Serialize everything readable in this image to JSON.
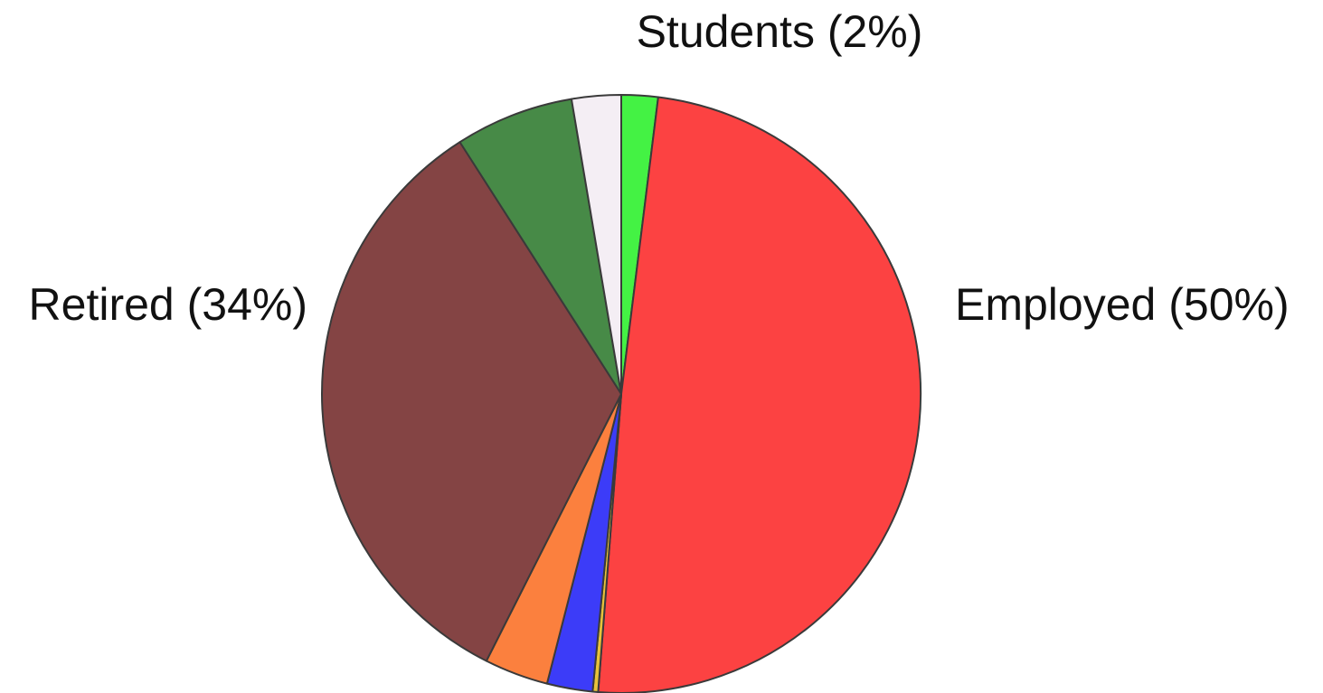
{
  "chart_data": {
    "type": "pie",
    "slices": [
      {
        "label": "Students (2%)",
        "value": 2,
        "color": "#44f244"
      },
      {
        "label": "Employed (50%)",
        "value": 50,
        "color": "#fc4242"
      },
      {
        "label": "",
        "value": 0.3,
        "color": "#e8c23a"
      },
      {
        "label": "",
        "value": 2.5,
        "color": "#3c3cf8"
      },
      {
        "label": "",
        "value": 3.5,
        "color": "#fb803e"
      },
      {
        "label": "Retired (34%)",
        "value": 34,
        "color": "#844444"
      },
      {
        "label": "",
        "value": 6.5,
        "color": "#478a47"
      },
      {
        "label": "",
        "value": 2.7,
        "color": "#f4eef4"
      }
    ],
    "start_angle_deg": 0,
    "direction": "clockwise"
  }
}
